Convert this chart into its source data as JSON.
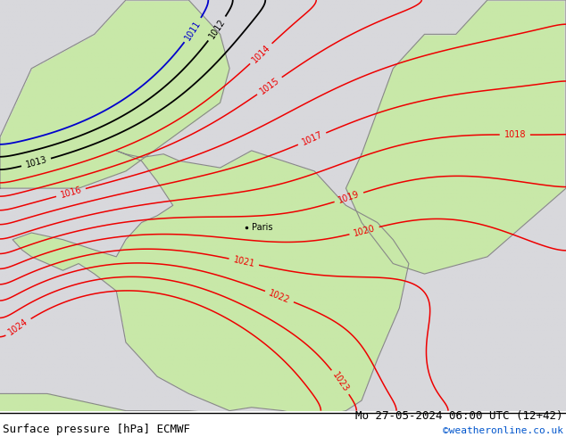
{
  "title_left": "Surface pressure [hPa] ECMWF",
  "title_right": "Mo 27-05-2024 06:00 UTC (12+42)",
  "title_right2": "©weatheronline.co.uk",
  "bg_color_ocean": "#d8d8dc",
  "bg_color_land_green": "#c8e8a8",
  "contour_color_red": "#ee0000",
  "contour_color_black": "#000000",
  "contour_color_blue": "#0000cc",
  "label_fontsize": 7,
  "title_fontsize": 9,
  "figsize": [
    6.34,
    4.9
  ],
  "dpi": 100,
  "paris_x": 2.35,
  "paris_y": 48.85,
  "xlim": [
    -5.5,
    12.5
  ],
  "ylim": [
    43.5,
    55.5
  ]
}
